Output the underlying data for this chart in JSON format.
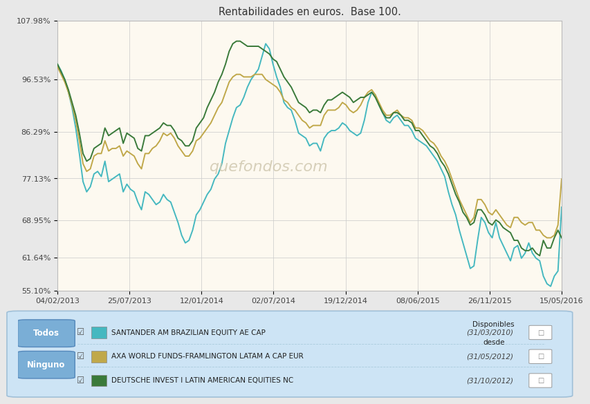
{
  "title": "Rentabilidades en euros.  Base 100.",
  "fig_bg": "#e8e8e8",
  "chart_bg": "#fdf9f0",
  "grid_color": "#cccccc",
  "yticks": [
    55.1,
    61.64,
    68.95,
    77.13,
    86.29,
    96.53,
    107.98
  ],
  "ytick_labels": [
    "55.10%",
    "61.64%",
    "68.95%",
    "77.13%",
    "86.29%",
    "96.53%",
    "107.98%"
  ],
  "xtick_labels": [
    "04/02/2013",
    "25/07/2013",
    "12/01/2014",
    "02/07/2014",
    "19/12/2014",
    "08/06/2015",
    "26/11/2015",
    "15/05/2016"
  ],
  "watermark": "quefondos.com",
  "legend_bg": "#cde4f5",
  "legend_border": "#a0c0d8",
  "btn_color": "#7aaed6",
  "btn_border": "#5588bb",
  "series": [
    {
      "name": "SANTANDER AM BRAZILIAN EQUITY AE CAP",
      "color": "#45b8c0",
      "available": "(31/03/2010)"
    },
    {
      "name": "AXA WORLD FUNDS-FRAMLINGTON LATAM A CAP EUR",
      "color": "#c0a84a",
      "available": "(31/05/2012)"
    },
    {
      "name": "DEUTSCHE INVEST I LATIN AMERICAN EQUITIES NC",
      "color": "#3a7a3a",
      "available": "(31/10/2012)"
    }
  ],
  "san_y": [
    99.5,
    98.2,
    96.5,
    94.0,
    91.0,
    87.0,
    82.0,
    76.5,
    74.5,
    75.5,
    78.0,
    78.5,
    77.5,
    80.5,
    76.5,
    77.0,
    77.5,
    78.0,
    74.5,
    76.0,
    75.0,
    74.5,
    72.5,
    71.0,
    74.5,
    74.0,
    73.0,
    72.0,
    72.5,
    74.0,
    73.0,
    72.5,
    70.5,
    68.5,
    66.0,
    64.5,
    65.0,
    67.0,
    70.0,
    71.0,
    72.5,
    74.0,
    75.0,
    77.0,
    78.0,
    80.0,
    84.0,
    86.5,
    89.0,
    91.0,
    91.5,
    93.0,
    95.0,
    96.5,
    97.5,
    98.5,
    101.0,
    103.5,
    102.5,
    99.5,
    97.0,
    95.0,
    92.0,
    91.0,
    90.5,
    88.5,
    86.0,
    85.5,
    85.0,
    83.5,
    84.0,
    84.0,
    82.5,
    85.0,
    86.0,
    86.5,
    86.5,
    87.0,
    88.0,
    87.5,
    86.5,
    86.0,
    85.5,
    86.0,
    88.5,
    92.0,
    94.0,
    93.5,
    91.5,
    90.0,
    88.5,
    88.0,
    89.0,
    89.5,
    88.5,
    87.5,
    87.5,
    86.5,
    85.0,
    84.5,
    84.0,
    83.5,
    82.5,
    81.5,
    80.5,
    79.0,
    77.5,
    74.5,
    72.0,
    70.0,
    67.0,
    64.5,
    62.0,
    59.5,
    60.0,
    65.0,
    69.5,
    68.5,
    66.5,
    65.5,
    68.5,
    65.5,
    64.0,
    62.5,
    61.0,
    63.5,
    64.0,
    61.5,
    62.5,
    64.5,
    62.5,
    61.5,
    61.0,
    58.0,
    56.5,
    56.0,
    58.0,
    59.0,
    71.5
  ],
  "axa_y": [
    99.0,
    97.5,
    96.0,
    94.0,
    91.5,
    88.5,
    84.5,
    80.0,
    78.5,
    79.0,
    81.5,
    82.0,
    82.0,
    84.5,
    82.5,
    83.0,
    83.0,
    83.5,
    81.5,
    82.5,
    82.0,
    81.5,
    80.0,
    79.0,
    82.0,
    82.0,
    83.0,
    83.5,
    84.5,
    86.0,
    85.5,
    86.0,
    85.0,
    83.5,
    82.5,
    81.5,
    81.5,
    82.5,
    84.5,
    85.0,
    86.0,
    87.0,
    88.0,
    89.5,
    91.0,
    92.0,
    94.0,
    96.0,
    97.0,
    97.5,
    97.5,
    97.0,
    97.0,
    97.0,
    97.5,
    97.5,
    97.5,
    96.5,
    96.0,
    95.5,
    95.0,
    94.0,
    92.5,
    92.0,
    91.0,
    90.5,
    89.5,
    88.5,
    88.0,
    87.0,
    87.5,
    87.5,
    87.5,
    89.5,
    90.5,
    90.5,
    90.5,
    91.0,
    92.0,
    91.5,
    90.5,
    90.0,
    90.5,
    91.5,
    93.0,
    94.0,
    94.5,
    93.5,
    92.0,
    90.5,
    89.5,
    89.5,
    90.0,
    90.5,
    89.5,
    89.0,
    89.0,
    88.5,
    87.0,
    87.0,
    86.5,
    85.5,
    84.5,
    84.0,
    83.0,
    81.5,
    80.5,
    79.0,
    77.0,
    75.0,
    73.0,
    71.5,
    70.0,
    68.5,
    69.5,
    73.0,
    73.0,
    72.0,
    70.5,
    70.0,
    71.0,
    70.0,
    69.0,
    68.0,
    67.5,
    69.5,
    69.5,
    68.5,
    68.0,
    68.5,
    68.5,
    67.0,
    67.0,
    66.0,
    65.5,
    65.5,
    66.0,
    68.0,
    77.0
  ],
  "deu_y": [
    99.5,
    98.0,
    96.5,
    94.5,
    92.0,
    89.5,
    86.0,
    82.0,
    80.5,
    81.0,
    83.0,
    83.5,
    84.0,
    87.0,
    85.5,
    86.0,
    86.5,
    87.0,
    84.0,
    86.0,
    85.5,
    85.0,
    83.0,
    82.5,
    85.5,
    85.5,
    86.0,
    86.5,
    87.0,
    88.0,
    87.5,
    87.5,
    86.5,
    85.0,
    84.5,
    83.5,
    83.5,
    84.5,
    87.0,
    88.0,
    89.0,
    91.0,
    92.5,
    94.0,
    96.0,
    97.5,
    99.5,
    102.0,
    103.5,
    104.0,
    104.0,
    103.5,
    103.0,
    103.0,
    103.0,
    103.0,
    102.5,
    102.0,
    101.5,
    100.5,
    100.0,
    98.5,
    97.0,
    96.0,
    95.0,
    93.5,
    92.0,
    91.5,
    91.0,
    90.0,
    90.5,
    90.5,
    90.0,
    91.5,
    92.5,
    92.5,
    93.0,
    93.5,
    94.0,
    93.5,
    93.0,
    92.0,
    92.5,
    93.0,
    93.0,
    93.5,
    94.0,
    93.0,
    91.5,
    90.0,
    89.0,
    89.0,
    90.0,
    90.0,
    89.5,
    88.5,
    88.5,
    88.0,
    86.5,
    86.5,
    85.5,
    84.5,
    83.5,
    83.0,
    82.0,
    80.5,
    79.5,
    78.0,
    76.0,
    74.0,
    72.5,
    70.5,
    69.5,
    68.0,
    68.5,
    71.0,
    71.0,
    70.0,
    68.5,
    68.0,
    69.0,
    68.5,
    67.5,
    67.0,
    66.5,
    65.0,
    65.0,
    63.5,
    63.0,
    63.0,
    63.5,
    62.5,
    62.0,
    65.0,
    63.5,
    63.5,
    65.5,
    67.0,
    65.5
  ]
}
